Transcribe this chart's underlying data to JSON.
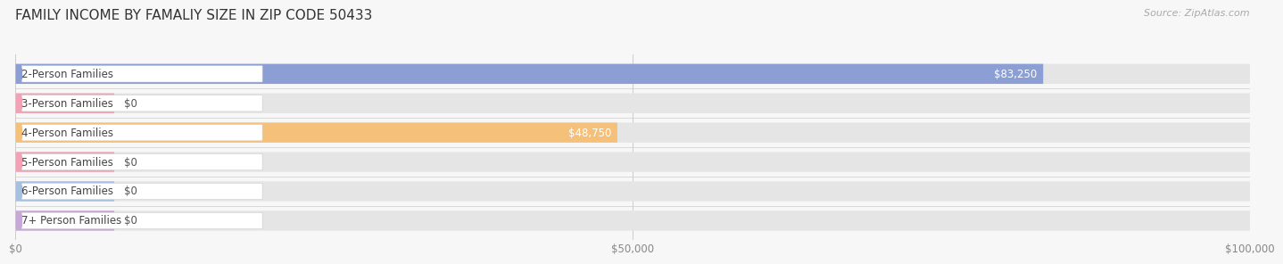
{
  "title": "FAMILY INCOME BY FAMALIY SIZE IN ZIP CODE 50433",
  "source": "Source: ZipAtlas.com",
  "categories": [
    "2-Person Families",
    "3-Person Families",
    "4-Person Families",
    "5-Person Families",
    "6-Person Families",
    "7+ Person Families"
  ],
  "values": [
    83250,
    0,
    48750,
    0,
    0,
    0
  ],
  "bar_colors": [
    "#8B9FD4",
    "#F4A0B5",
    "#F5C07A",
    "#F4A0B5",
    "#A8C0E0",
    "#C8A8D8"
  ],
  "zero_bar_colors": [
    "#F4A0B5",
    "#F4A0B5",
    "#F4A0B5",
    "#F4A0B5",
    "#A8C0E0",
    "#C8A8D8"
  ],
  "xlim": [
    0,
    100000
  ],
  "xticks": [
    0,
    50000,
    100000
  ],
  "xtick_labels": [
    "$0",
    "$50,000",
    "$100,000"
  ],
  "value_labels": [
    "$83,250",
    "$0",
    "$48,750",
    "$0",
    "$0",
    "$0"
  ],
  "background_color": "#f7f7f7",
  "bar_background_color": "#e5e5e5",
  "title_fontsize": 11,
  "label_fontsize": 8.5,
  "value_fontsize": 8.5,
  "tick_fontsize": 8.5,
  "zero_bar_width": 8000
}
